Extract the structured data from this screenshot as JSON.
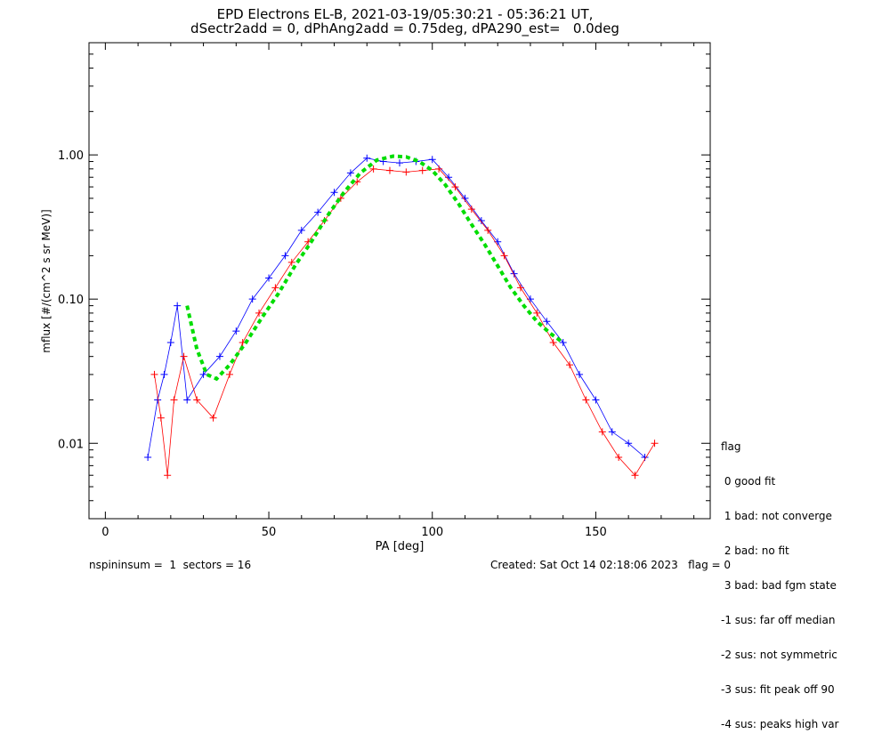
{
  "chart_data": {
    "type": "scatter",
    "title": "EPD Electrons EL-B, 2021-03-19/05:30:21 - 05:36:21 UT,",
    "subtitle": "dSectr2add = 0, dPhAng2add = 0.75deg, dPA290_est=   0.0deg",
    "xlabel": "PA [deg]",
    "ylabel": "mflux [#/(cm^2 s sr MeV)]",
    "xlim": [
      -5,
      185
    ],
    "ylim": [
      0.003,
      6
    ],
    "yscale": "log",
    "x_ticks": [
      "0",
      "50",
      "100",
      "150"
    ],
    "y_ticks": [
      "0.01",
      "0.10",
      "1.00"
    ],
    "x_tick_values": [
      0,
      50,
      100,
      150
    ],
    "y_tick_values": [
      0.01,
      0.1,
      1.0
    ],
    "grid": false,
    "colors": {
      "up_series": "#ff0000",
      "down_series": "#0000ff",
      "fit": "#00dd00"
    },
    "series": [
      {
        "color": "#0000ff",
        "x": [
          13,
          16,
          18,
          20,
          22,
          25,
          30,
          35,
          40,
          45,
          50,
          55,
          60,
          65,
          70,
          75,
          80,
          85,
          90,
          95,
          100,
          105,
          110,
          115,
          120,
          125,
          130,
          135,
          140,
          145,
          150,
          155,
          160,
          165
        ],
        "values": [
          0.008,
          0.02,
          0.03,
          0.05,
          0.09,
          0.02,
          0.03,
          0.04,
          0.06,
          0.1,
          0.14,
          0.2,
          0.3,
          0.4,
          0.55,
          0.75,
          0.95,
          0.9,
          0.88,
          0.9,
          0.93,
          0.7,
          0.5,
          0.35,
          0.25,
          0.15,
          0.1,
          0.07,
          0.05,
          0.03,
          0.02,
          0.012,
          0.01,
          0.008
        ]
      },
      {
        "color": "#ff0000",
        "x": [
          15,
          17,
          19,
          21,
          24,
          28,
          33,
          38,
          42,
          47,
          52,
          57,
          62,
          67,
          72,
          77,
          82,
          87,
          92,
          97,
          102,
          107,
          112,
          117,
          122,
          127,
          132,
          137,
          142,
          147,
          152,
          157,
          162,
          168
        ],
        "values": [
          0.03,
          0.015,
          0.006,
          0.02,
          0.04,
          0.02,
          0.015,
          0.03,
          0.05,
          0.08,
          0.12,
          0.18,
          0.25,
          0.35,
          0.5,
          0.65,
          0.8,
          0.78,
          0.76,
          0.78,
          0.8,
          0.6,
          0.42,
          0.3,
          0.2,
          0.12,
          0.08,
          0.05,
          0.035,
          0.02,
          0.012,
          0.008,
          0.006,
          0.01
        ]
      }
    ],
    "fit": {
      "color": "#00dd00",
      "x": [
        25,
        28,
        31,
        34,
        38,
        43,
        48,
        53,
        58,
        63,
        68,
        73,
        78,
        83,
        88,
        92,
        96,
        100,
        104,
        108,
        112,
        116,
        120,
        124,
        128,
        132,
        136,
        140
      ],
      "values": [
        0.09,
        0.045,
        0.03,
        0.028,
        0.035,
        0.05,
        0.075,
        0.11,
        0.17,
        0.25,
        0.38,
        0.55,
        0.75,
        0.92,
        0.98,
        0.97,
        0.9,
        0.78,
        0.62,
        0.46,
        0.33,
        0.24,
        0.17,
        0.12,
        0.09,
        0.07,
        0.058,
        0.05
      ]
    },
    "legend": {
      "position": "right-bottom",
      "title": "flag",
      "entries": [
        " 0 good fit",
        " 1 bad: not converge",
        " 2 bad: no fit",
        " 3 bad: bad fgm state",
        "-1 sus: far off median",
        "-2 sus: not symmetric",
        "-3 sus: fit peak off 90",
        "-4 sus: peaks high var"
      ]
    }
  },
  "footer": {
    "left": "nspininsum =  1  sectors = 16",
    "right": "Created: Sat Oct 14 02:18:06 2023   flag = 0"
  }
}
